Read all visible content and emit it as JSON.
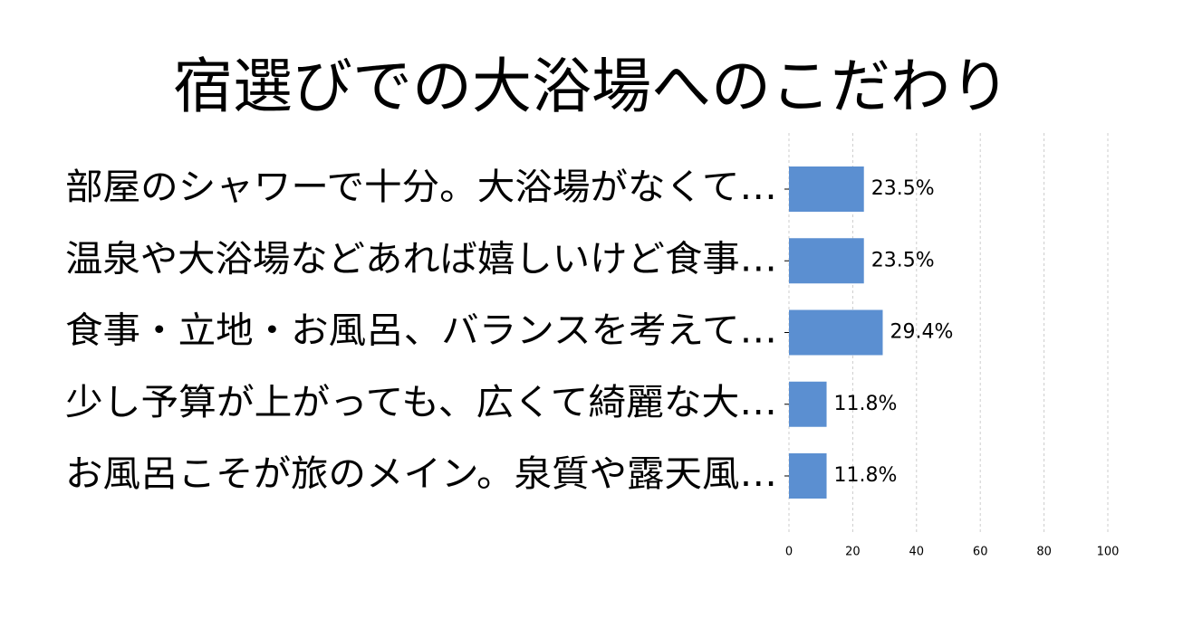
{
  "chart_data": {
    "type": "bar",
    "orientation": "horizontal",
    "title": "宿選びでの大浴場へのこだわり",
    "categories": [
      "部屋のシャワーで十分。大浴場がなくて…",
      "温泉や大浴場などあれば嬉しいけど食事…",
      "食事・立地・お風呂、バランスを考えて…",
      "少し予算が上がっても、広くて綺麗な大…",
      "お風呂こそが旅のメイン。泉質や露天風…"
    ],
    "values": [
      23.5,
      23.5,
      29.4,
      11.8,
      11.8
    ],
    "value_labels": [
      "23.5%",
      "23.5%",
      "29.4%",
      "11.8%",
      "11.8%"
    ],
    "xlim": [
      0,
      100
    ],
    "x_ticks": [
      0,
      20,
      40,
      60,
      80,
      100
    ],
    "grid": true,
    "bar_color": "#5b8fd1",
    "grid_color": "#cccccc"
  }
}
